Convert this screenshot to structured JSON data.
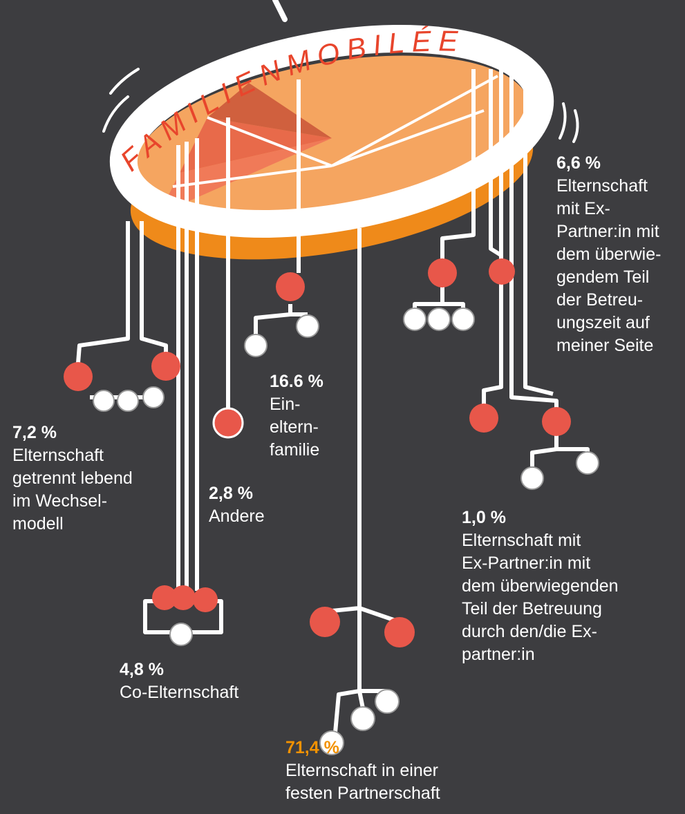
{
  "title": "FAMILIENMOBILÉE",
  "labels": [
    {
      "percent": "6,6 %",
      "lines": [
        "Elternschaft",
        "mit Ex-",
        "Partner:in mit",
        "dem überwie-",
        "gendem Teil",
        "der Betreu-",
        "ungszeit auf",
        "meiner Seite"
      ]
    },
    {
      "percent": "16.6 %",
      "lines": [
        "Ein-",
        "eltern-",
        "familie"
      ]
    },
    {
      "percent": "7,2 %",
      "lines": [
        "Elternschaft",
        "getrennt lebend",
        "im Wechsel-",
        "modell"
      ]
    },
    {
      "percent": "2,8 %",
      "lines": [
        "Andere"
      ]
    },
    {
      "percent": "1,0 %",
      "lines": [
        "Elternschaft mit",
        "Ex-Partner:in mit",
        "dem überwiegenden",
        "Teil der Betreuung",
        "durch den/die Ex-",
        "partner:in"
      ]
    },
    {
      "percent": "4,8 %",
      "lines": [
        "Co-Elternschaft"
      ]
    },
    {
      "percent": "71,4 %",
      "lines": [
        "Elternschaft in einer",
        "festen Partnerschaft"
      ]
    }
  ]
}
